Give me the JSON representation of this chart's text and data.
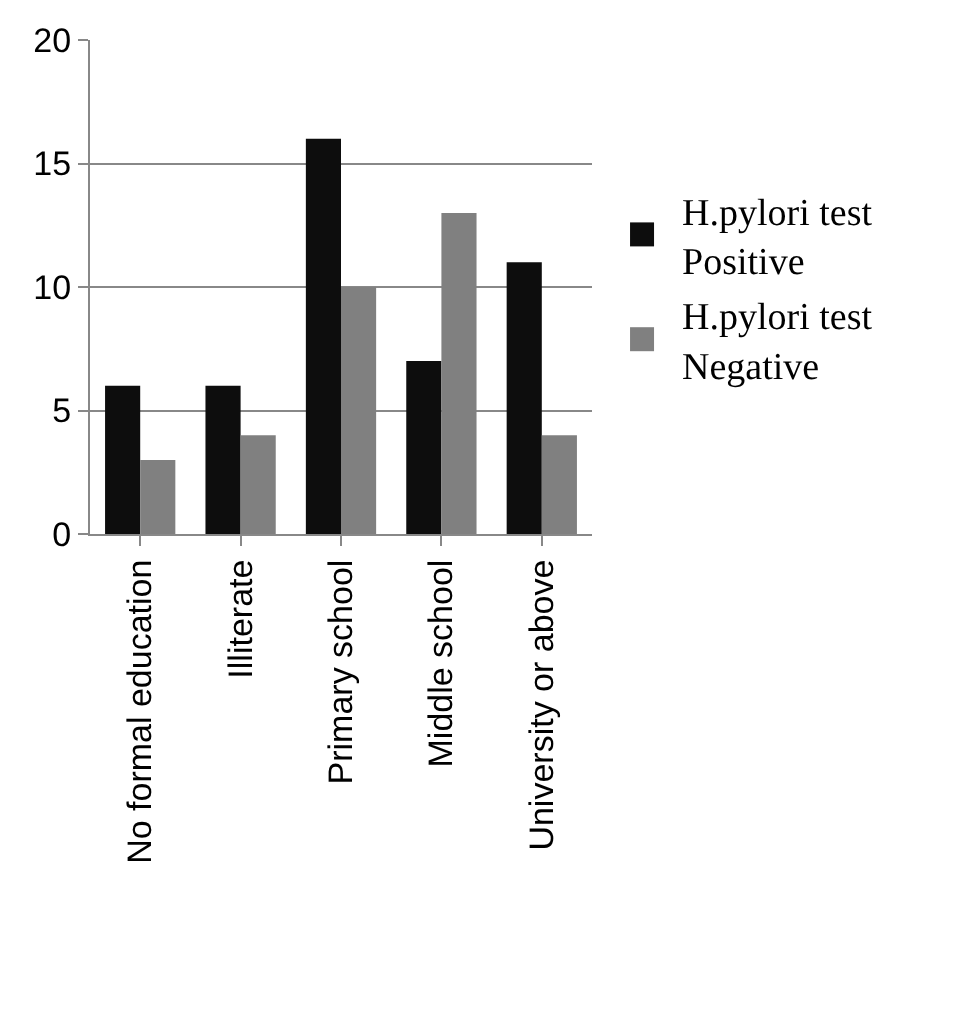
{
  "chart_data": {
    "type": "bar",
    "categories": [
      "No formal education",
      "Illiterate",
      "Primary school",
      "Middle school",
      "University or above"
    ],
    "series": [
      {
        "name": "H.pylori test Positive",
        "color": "#0d0d0d",
        "values": [
          6,
          6,
          16,
          7,
          11
        ]
      },
      {
        "name": "H.pylori test Negative",
        "color": "#808080",
        "values": [
          3,
          4,
          10,
          13,
          4
        ]
      }
    ],
    "ylim": [
      0,
      20
    ],
    "yticks": [
      0,
      5,
      10,
      15,
      20
    ],
    "grid": "y",
    "legend": "right"
  }
}
